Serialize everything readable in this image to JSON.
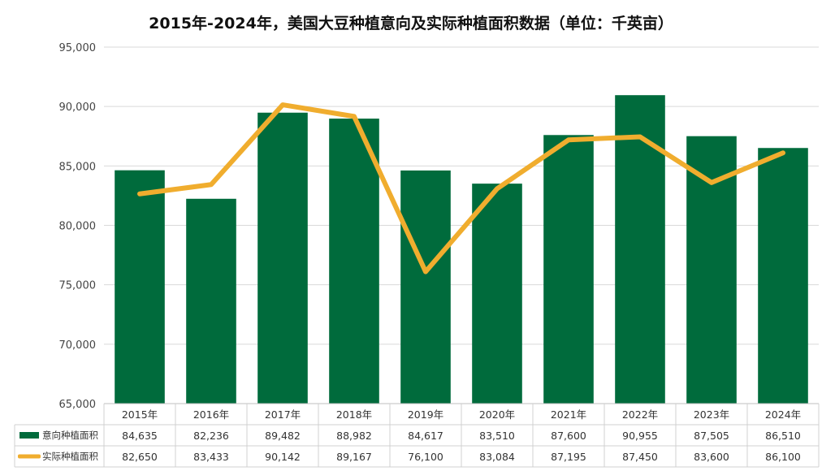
{
  "title": "2015年-2024年，美国大豆种植意向及实际种植面积数据（单位：千英亩）",
  "chart_data": {
    "type": "bar",
    "title": "2015年-2024年，美国大豆种植意向及实际种植面积数据（单位：千英亩）",
    "categories": [
      "2015年",
      "2016年",
      "2017年",
      "2018年",
      "2019年",
      "2020年",
      "2021年",
      "2022年",
      "2023年",
      "2024年"
    ],
    "series": [
      {
        "name": "意向种植面积",
        "kind": "bar",
        "color": "#006b3c",
        "values": [
          84635,
          82236,
          89482,
          88982,
          84617,
          83510,
          87600,
          90955,
          87505,
          86510
        ],
        "labels": [
          "84,635",
          "82,236",
          "89,482",
          "88,982",
          "84,617",
          "83,510",
          "87,600",
          "90,955",
          "87,505",
          "86,510"
        ]
      },
      {
        "name": "实际种植面积",
        "kind": "line",
        "color": "#f0ad2e",
        "values": [
          82650,
          83433,
          90142,
          89167,
          76100,
          83084,
          87195,
          87450,
          83600,
          86100
        ],
        "labels": [
          "82,650",
          "83,433",
          "90,142",
          "89,167",
          "76,100",
          "83,084",
          "87,195",
          "87,450",
          "83,600",
          "86,100"
        ]
      }
    ],
    "ylim": [
      65000,
      95000
    ],
    "yticks": [
      65000,
      70000,
      75000,
      80000,
      85000,
      90000,
      95000
    ],
    "ytick_labels": [
      "65,000",
      "70,000",
      "75,000",
      "80,000",
      "85,000",
      "90,000",
      "95,000"
    ],
    "grid": true,
    "legend": "data-table"
  }
}
